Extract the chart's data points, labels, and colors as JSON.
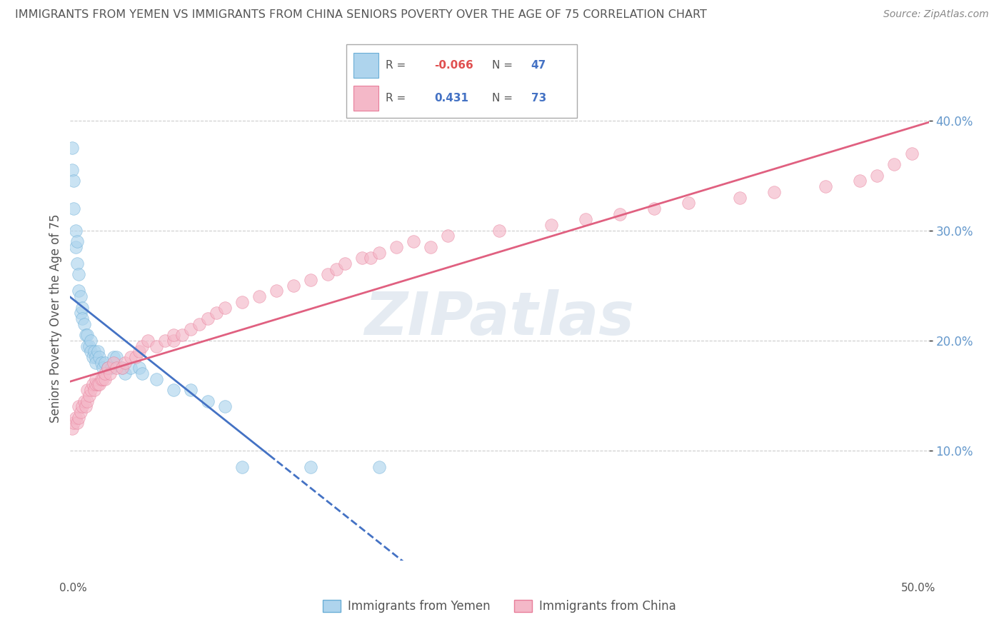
{
  "title": "IMMIGRANTS FROM YEMEN VS IMMIGRANTS FROM CHINA SENIORS POVERTY OVER THE AGE OF 75 CORRELATION CHART",
  "source": "Source: ZipAtlas.com",
  "ylabel": "Seniors Poverty Over the Age of 75",
  "watermark": "ZIPatlas",
  "xlim": [
    0.0,
    0.5
  ],
  "ylim": [
    0.0,
    0.44
  ],
  "yticks": [
    0.1,
    0.2,
    0.3,
    0.4
  ],
  "ytick_labels": [
    "10.0%",
    "20.0%",
    "30.0%",
    "40.0%"
  ],
  "background_color": "#ffffff",
  "grid_color": "#cccccc",
  "title_color": "#555555",
  "axis_tick_color": "#6699cc",
  "ylabel_color": "#555555",
  "series": [
    {
      "name": "Immigrants from Yemen",
      "face_color": "#aed4ed",
      "edge_color": "#6aaed6",
      "line_color": "#4472c4",
      "R": -0.066,
      "N": 47,
      "x": [
        0.001,
        0.001,
        0.002,
        0.002,
        0.003,
        0.003,
        0.004,
        0.004,
        0.005,
        0.005,
        0.006,
        0.006,
        0.007,
        0.007,
        0.008,
        0.009,
        0.01,
        0.01,
        0.011,
        0.012,
        0.012,
        0.013,
        0.014,
        0.015,
        0.015,
        0.016,
        0.017,
        0.018,
        0.019,
        0.02,
        0.022,
        0.024,
        0.025,
        0.027,
        0.03,
        0.032,
        0.035,
        0.04,
        0.042,
        0.05,
        0.06,
        0.07,
        0.08,
        0.09,
        0.1,
        0.14,
        0.18
      ],
      "y": [
        0.375,
        0.355,
        0.345,
        0.32,
        0.3,
        0.285,
        0.27,
        0.29,
        0.26,
        0.245,
        0.24,
        0.225,
        0.23,
        0.22,
        0.215,
        0.205,
        0.205,
        0.195,
        0.195,
        0.2,
        0.19,
        0.185,
        0.19,
        0.185,
        0.18,
        0.19,
        0.185,
        0.18,
        0.175,
        0.18,
        0.175,
        0.175,
        0.185,
        0.185,
        0.175,
        0.17,
        0.175,
        0.175,
        0.17,
        0.165,
        0.155,
        0.155,
        0.145,
        0.14,
        0.085,
        0.085,
        0.085
      ]
    },
    {
      "name": "Immigrants from China",
      "face_color": "#f4b8c8",
      "edge_color": "#e87e9a",
      "line_color": "#e06080",
      "R": 0.431,
      "N": 73,
      "x": [
        0.001,
        0.002,
        0.003,
        0.004,
        0.005,
        0.005,
        0.006,
        0.007,
        0.008,
        0.009,
        0.01,
        0.01,
        0.011,
        0.012,
        0.013,
        0.014,
        0.015,
        0.015,
        0.016,
        0.017,
        0.018,
        0.019,
        0.02,
        0.02,
        0.022,
        0.023,
        0.025,
        0.027,
        0.03,
        0.032,
        0.035,
        0.038,
        0.04,
        0.042,
        0.045,
        0.05,
        0.055,
        0.06,
        0.06,
        0.065,
        0.07,
        0.075,
        0.08,
        0.085,
        0.09,
        0.1,
        0.11,
        0.12,
        0.13,
        0.14,
        0.15,
        0.155,
        0.16,
        0.17,
        0.175,
        0.18,
        0.19,
        0.2,
        0.21,
        0.22,
        0.25,
        0.28,
        0.3,
        0.32,
        0.34,
        0.36,
        0.39,
        0.41,
        0.44,
        0.46,
        0.47,
        0.48,
        0.49
      ],
      "y": [
        0.12,
        0.125,
        0.13,
        0.125,
        0.13,
        0.14,
        0.135,
        0.14,
        0.145,
        0.14,
        0.145,
        0.155,
        0.15,
        0.155,
        0.16,
        0.155,
        0.16,
        0.165,
        0.16,
        0.16,
        0.165,
        0.165,
        0.165,
        0.17,
        0.175,
        0.17,
        0.18,
        0.175,
        0.175,
        0.18,
        0.185,
        0.185,
        0.19,
        0.195,
        0.2,
        0.195,
        0.2,
        0.2,
        0.205,
        0.205,
        0.21,
        0.215,
        0.22,
        0.225,
        0.23,
        0.235,
        0.24,
        0.245,
        0.25,
        0.255,
        0.26,
        0.265,
        0.27,
        0.275,
        0.275,
        0.28,
        0.285,
        0.29,
        0.285,
        0.295,
        0.3,
        0.305,
        0.31,
        0.315,
        0.32,
        0.325,
        0.33,
        0.335,
        0.34,
        0.345,
        0.35,
        0.36,
        0.37
      ]
    }
  ]
}
